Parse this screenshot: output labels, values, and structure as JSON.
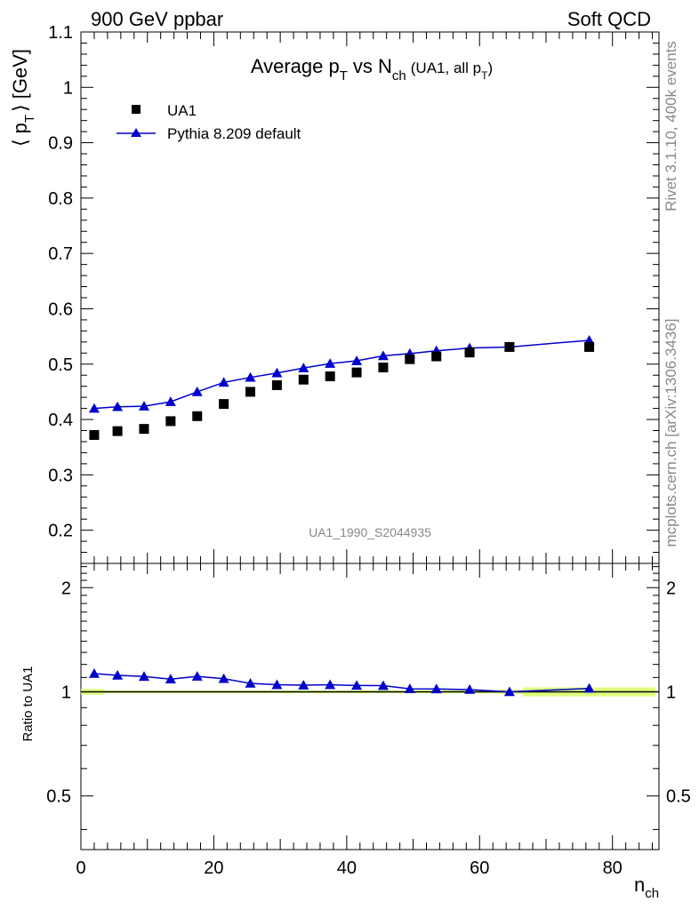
{
  "header": {
    "left": "900 GeV ppbar",
    "right": "Soft QCD"
  },
  "side_text": {
    "upper": "Rivet 3.1.10,  400k events",
    "lower": "mcplots.cern.ch [arXiv:1306.3436]"
  },
  "colors": {
    "data_marker": "#000000",
    "mc_line": "#0000cc",
    "band_fill": "#e0ff80",
    "ref_line": "#008800"
  },
  "chart_data": [
    {
      "type": "scatter",
      "title": {
        "main": "Average p",
        "main_sub": "T",
        "vs": "vs N",
        "vs_sub": "ch",
        "paren": "(UA1, all p",
        "paren_sub": "T",
        "paren_close": ")"
      },
      "ylabel": {
        "open": "⟨ p",
        "sub": "T",
        "close": "⟩ [GeV]"
      },
      "ylim": [
        0.14,
        1.1
      ],
      "xlim": [
        0,
        87
      ],
      "ytick_labels": [
        "0.2",
        "0.3",
        "0.4",
        "0.5",
        "0.6",
        "0.7",
        "0.8",
        "0.9",
        "1",
        "1.1"
      ],
      "analysis_label": "UA1_1990_S2044935",
      "legend_position": "top-left",
      "legend": [
        "UA1",
        "Pythia 8.209 default"
      ],
      "series": [
        {
          "name": "UA1",
          "marker": "square",
          "x": [
            2,
            5.5,
            9.5,
            13.5,
            17.5,
            21.5,
            25.5,
            29.5,
            33.5,
            37.5,
            41.5,
            45.5,
            49.5,
            53.5,
            58.5,
            64.5,
            76.5
          ],
          "values": [
            0.372,
            0.379,
            0.383,
            0.397,
            0.406,
            0.428,
            0.45,
            0.462,
            0.472,
            0.478,
            0.485,
            0.494,
            0.509,
            0.514,
            0.521,
            0.531,
            0.531
          ]
        },
        {
          "name": "Pythia 8.209 default",
          "marker": "triangle",
          "x": [
            2,
            5.5,
            9.5,
            13.5,
            17.5,
            21.5,
            25.5,
            29.5,
            33.5,
            37.5,
            41.5,
            45.5,
            49.5,
            53.5,
            58.5,
            64.5,
            76.5
          ],
          "values": [
            0.42,
            0.423,
            0.424,
            0.432,
            0.45,
            0.467,
            0.476,
            0.484,
            0.493,
            0.501,
            0.506,
            0.515,
            0.519,
            0.524,
            0.529,
            0.531,
            0.543
          ]
        }
      ]
    },
    {
      "type": "line",
      "ylabel": "Ratio to UA1",
      "xlabel": {
        "main": "n",
        "sub": "ch"
      },
      "xlim": [
        0,
        87
      ],
      "ylim": [
        0.35,
        2.35
      ],
      "ytick_labels": [
        "0.5",
        "1",
        "2"
      ],
      "xtick_labels": [
        "0",
        "20",
        "40",
        "60",
        "80"
      ],
      "reference": 1,
      "band": [
        {
          "x0": 0,
          "x1": 3.5,
          "half_width": 0.02
        },
        {
          "x0": 3.5,
          "x1": 63,
          "half_width": 0.01
        },
        {
          "x0": 63,
          "x1": 66.5,
          "half_width": 0.015
        },
        {
          "x0": 66.5,
          "x1": 86.5,
          "half_width": 0.03
        }
      ],
      "series": [
        {
          "name": "Pythia 8.209 default",
          "x": [
            2,
            5.5,
            9.5,
            13.5,
            17.5,
            21.5,
            25.5,
            29.5,
            33.5,
            37.5,
            41.5,
            45.5,
            49.5,
            53.5,
            58.5,
            64.5,
            76.5
          ],
          "values": [
            1.129,
            1.116,
            1.107,
            1.088,
            1.108,
            1.091,
            1.058,
            1.048,
            1.045,
            1.048,
            1.043,
            1.042,
            1.02,
            1.019,
            1.015,
            1.0,
            1.023
          ]
        }
      ]
    }
  ]
}
